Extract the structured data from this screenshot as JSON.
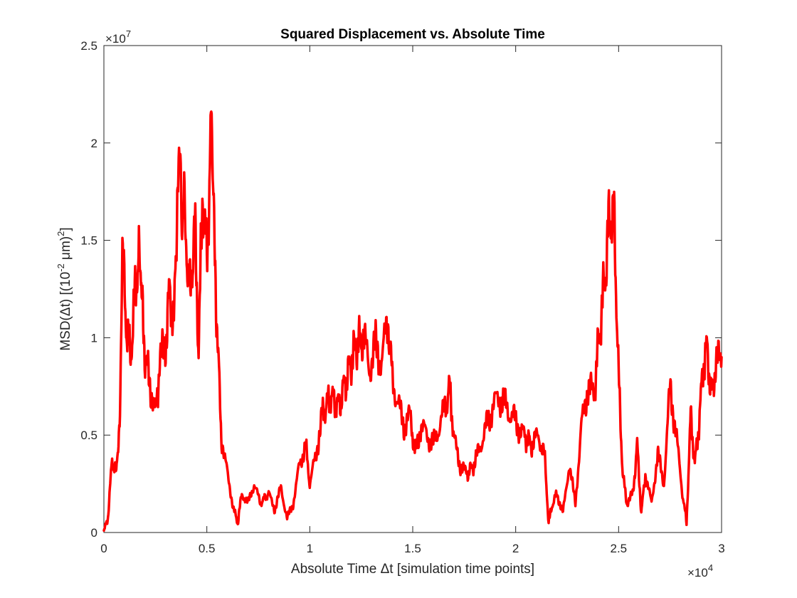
{
  "chart_data": {
    "type": "line",
    "title": "Squared Displacement vs. Absolute Time",
    "xlabel": "Absolute Time Δt [simulation time points]",
    "ylabel_parts": {
      "pre": "MSD(Δt) [(10",
      "exp1": "-2",
      "mid": " μm)",
      "exp2": "2",
      "post": "]"
    },
    "xlim": [
      0,
      30000
    ],
    "ylim": [
      0,
      25000000
    ],
    "x_exponent_label": {
      "base": "×10",
      "exp": "4"
    },
    "y_exponent_label": {
      "base": "×10",
      "exp": "7"
    },
    "x_ticks": [
      {
        "value": 0,
        "label": "0"
      },
      {
        "value": 5000,
        "label": "0.5"
      },
      {
        "value": 10000,
        "label": "1"
      },
      {
        "value": 15000,
        "label": "1.5"
      },
      {
        "value": 20000,
        "label": "2"
      },
      {
        "value": 25000,
        "label": "2.5"
      },
      {
        "value": 30000,
        "label": "3"
      }
    ],
    "y_ticks": [
      {
        "value": 0,
        "label": "0"
      },
      {
        "value": 5000000,
        "label": "0.5"
      },
      {
        "value": 10000000,
        "label": "1"
      },
      {
        "value": 15000000,
        "label": "1.5"
      },
      {
        "value": 20000000,
        "label": "2"
      },
      {
        "value": 25000000,
        "label": "2.5"
      }
    ],
    "grid": false,
    "series": [
      {
        "color": "#ff0000",
        "x": [
          0,
          200,
          400,
          600,
          800,
          900,
          1100,
          1300,
          1500,
          1700,
          1800,
          2000,
          2200,
          2500,
          2700,
          3000,
          3200,
          3400,
          3600,
          3700,
          3800,
          3900,
          4000,
          4200,
          4400,
          4600,
          4800,
          5000,
          5200,
          5300,
          5500,
          5700,
          6000,
          6300,
          6500,
          6700,
          7000,
          7300,
          7600,
          8000,
          8300,
          8600,
          8900,
          9200,
          9500,
          9800,
          10000,
          10300,
          10600,
          11000,
          11400,
          11800,
          12200,
          12600,
          12900,
          13200,
          13500,
          13800,
          14000,
          14300,
          14600,
          14900,
          15100,
          15400,
          15700,
          16000,
          16300,
          16600,
          16800,
          17000,
          17300,
          17600,
          18000,
          18300,
          18600,
          18900,
          19200,
          19500,
          19800,
          20100,
          20400,
          20800,
          21100,
          21400,
          21600,
          21800,
          22000,
          22300,
          22600,
          22900,
          23200,
          23500,
          23800,
          24000,
          24200,
          24400,
          24600,
          24800,
          25000,
          25200,
          25400,
          25700,
          25900,
          26100,
          26300,
          26600,
          26900,
          27200,
          27500,
          27800,
          28100,
          28300,
          28500,
          28700,
          28900,
          29100,
          29300,
          29500,
          29700,
          30000
        ],
        "y": [
          0,
          800000,
          3800000,
          3000000,
          6500000,
          14200000,
          10500000,
          9000000,
          12000000,
          14500000,
          12500000,
          9000000,
          8000000,
          6000000,
          8500000,
          9800000,
          12500000,
          10500000,
          19000000,
          22000000,
          17000000,
          20000000,
          15000000,
          12000000,
          16000000,
          9500000,
          17500000,
          14000000,
          20500000,
          17000000,
          10500000,
          5000000,
          3000000,
          1200000,
          500000,
          2000000,
          1500000,
          2500000,
          1500000,
          2000000,
          1200000,
          2300000,
          700000,
          1500000,
          3500000,
          4500000,
          2500000,
          4000000,
          6000000,
          7000000,
          6500000,
          8000000,
          9500000,
          10000000,
          8500000,
          9500000,
          8800000,
          11000000,
          8000000,
          6500000,
          5500000,
          6000000,
          4000000,
          5500000,
          5000000,
          4500000,
          5500000,
          6500000,
          7500000,
          4800000,
          3500000,
          3000000,
          3500000,
          4500000,
          5500000,
          6500000,
          7000000,
          6500000,
          6000000,
          5500000,
          5000000,
          4500000,
          5000000,
          4000000,
          500000,
          1500000,
          2000000,
          1000000,
          3500000,
          1500000,
          5500000,
          7500000,
          7000000,
          9500000,
          11500000,
          14000000,
          16500000,
          15500000,
          8000000,
          3000000,
          1500000,
          2000000,
          4500000,
          1000000,
          3000000,
          1500000,
          4000000,
          2500000,
          7500000,
          5000000,
          2000000,
          500000,
          6000000,
          3500000,
          5500000,
          8500000,
          9500000,
          7000000,
          8500000,
          9000000
        ]
      }
    ]
  }
}
